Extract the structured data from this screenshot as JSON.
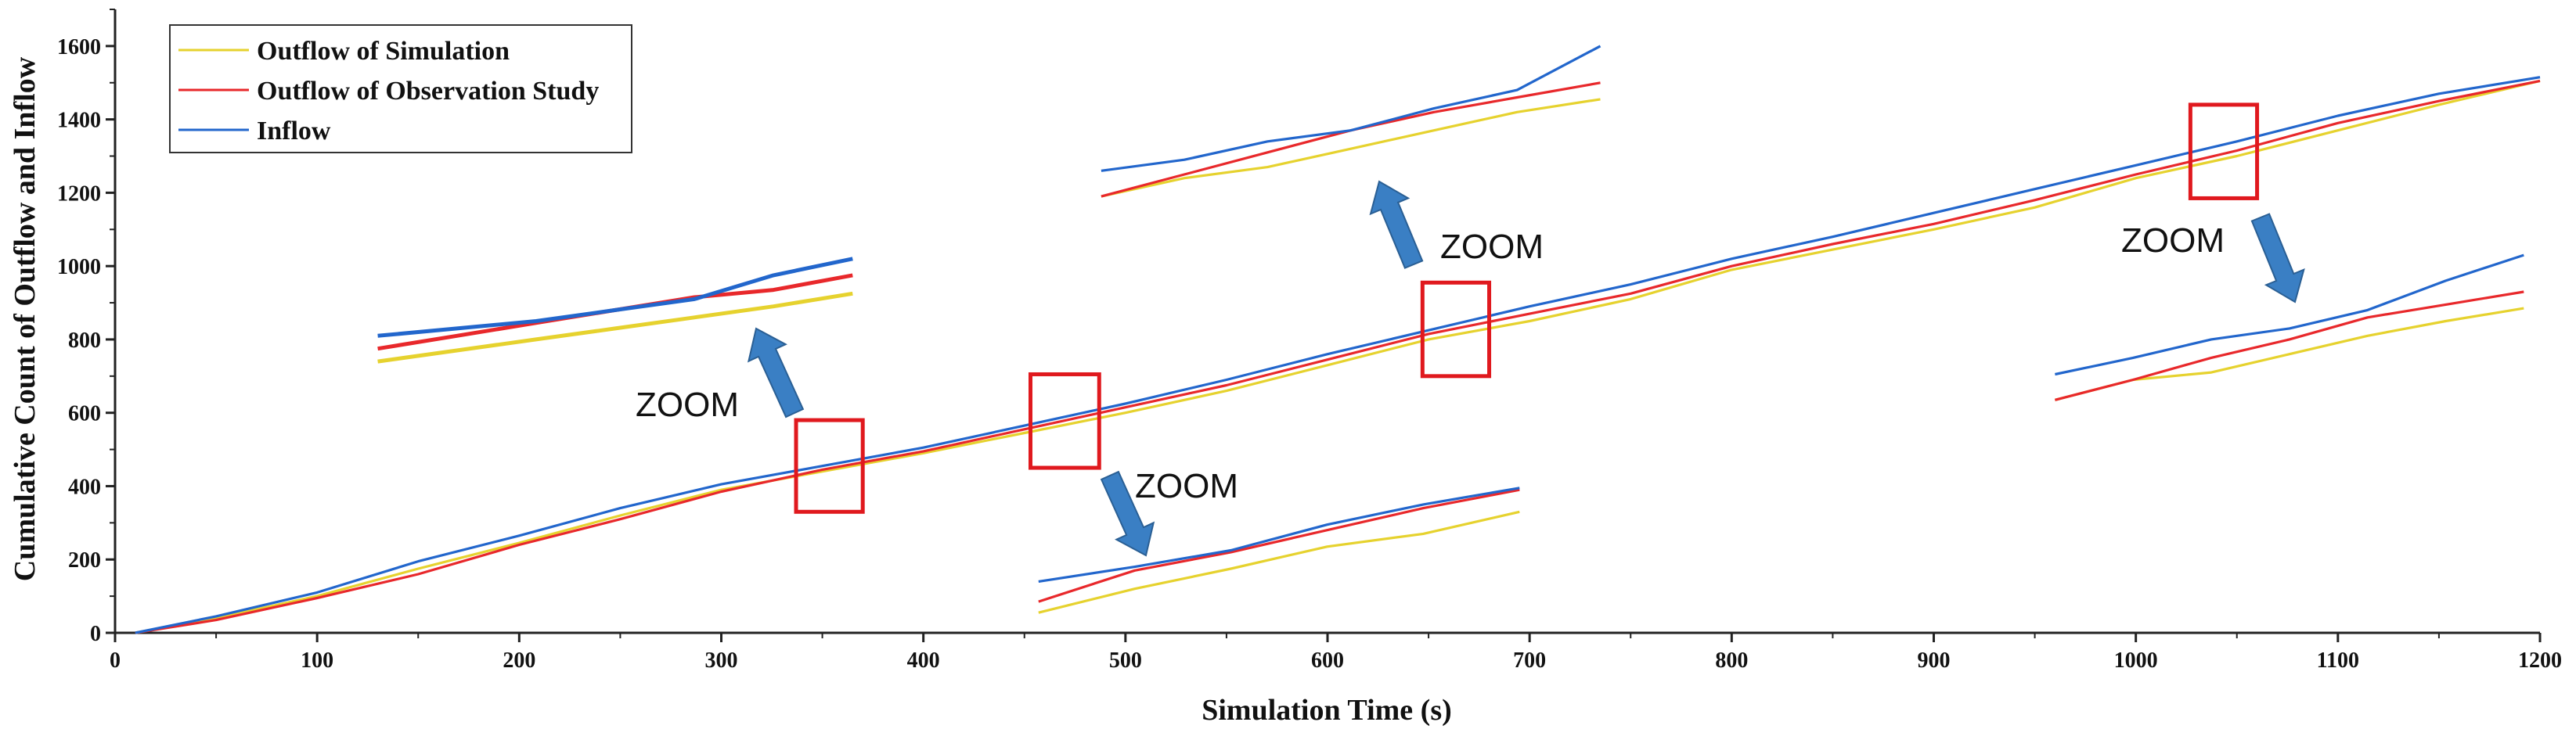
{
  "chart_data": {
    "type": "line",
    "title": "",
    "xlabel": "Simulation Time (s)",
    "ylabel": "Cumulative Count of Outflow and Inflow",
    "xlim": [
      0,
      1200
    ],
    "ylim": [
      0,
      1700
    ],
    "xticks": [
      0,
      100,
      200,
      300,
      400,
      500,
      600,
      700,
      800,
      900,
      1000,
      1100,
      1200
    ],
    "yticks": [
      0,
      200,
      400,
      600,
      800,
      1000,
      1200,
      1400,
      1600
    ],
    "grid": false,
    "legend_position": "top-left",
    "series": [
      {
        "name": "Outflow of Simulation",
        "color": "#e6d22e",
        "x": [
          10,
          50,
          100,
          150,
          200,
          250,
          300,
          350,
          400,
          450,
          500,
          550,
          600,
          650,
          700,
          750,
          800,
          850,
          900,
          950,
          1000,
          1050,
          1100,
          1150,
          1200
        ],
        "y": [
          0,
          40,
          100,
          175,
          245,
          320,
          390,
          440,
          490,
          545,
          600,
          660,
          730,
          800,
          850,
          910,
          990,
          1045,
          1100,
          1160,
          1240,
          1300,
          1370,
          1440,
          1505
        ]
      },
      {
        "name": "Outflow of Observation Study",
        "color": "#e8282b",
        "x": [
          10,
          50,
          100,
          150,
          200,
          250,
          300,
          350,
          400,
          450,
          500,
          550,
          600,
          650,
          700,
          750,
          800,
          850,
          900,
          950,
          1000,
          1050,
          1100,
          1150,
          1200
        ],
        "y": [
          0,
          35,
          95,
          160,
          240,
          310,
          385,
          445,
          495,
          555,
          615,
          675,
          745,
          815,
          870,
          925,
          1000,
          1060,
          1115,
          1180,
          1250,
          1315,
          1390,
          1450,
          1505
        ]
      },
      {
        "name": "Inflow",
        "color": "#2266cc",
        "x": [
          10,
          50,
          100,
          150,
          200,
          250,
          300,
          350,
          400,
          450,
          500,
          550,
          600,
          650,
          700,
          750,
          800,
          850,
          900,
          950,
          1000,
          1050,
          1100,
          1150,
          1200
        ],
        "y": [
          0,
          45,
          110,
          195,
          265,
          340,
          405,
          455,
          505,
          565,
          625,
          690,
          760,
          825,
          890,
          950,
          1020,
          1080,
          1145,
          1210,
          1275,
          1340,
          1410,
          1470,
          1515
        ]
      }
    ],
    "zoom_regions": [
      {
        "x_range": [
          337,
          370
        ],
        "y_range": [
          330,
          580
        ]
      },
      {
        "x_range": [
          453,
          487
        ],
        "y_range": [
          450,
          705
        ]
      },
      {
        "x_range": [
          647,
          680
        ],
        "y_range": [
          700,
          955
        ]
      },
      {
        "x_range": [
          1027,
          1060
        ],
        "y_range": [
          1185,
          1440
        ]
      }
    ],
    "annotations": [
      "ZOOM",
      "ZOOM",
      "ZOOM",
      "ZOOM"
    ],
    "insets": [
      {
        "simulation": [
          740,
          770,
          800,
          830,
          860,
          890,
          925
        ],
        "observation": [
          775,
          810,
          845,
          880,
          915,
          935,
          975
        ],
        "inflow": [
          810,
          830,
          850,
          880,
          910,
          975,
          1020
        ]
      },
      {
        "simulation": [
          55,
          120,
          175,
          235,
          270,
          330
        ],
        "observation": [
          85,
          170,
          220,
          280,
          340,
          390
        ],
        "inflow": [
          140,
          180,
          225,
          295,
          350,
          395
        ]
      },
      {
        "simulation": [
          1190,
          1240,
          1270,
          1320,
          1370,
          1420,
          1455
        ],
        "observation": [
          1190,
          1250,
          1310,
          1370,
          1420,
          1460,
          1500
        ],
        "inflow": [
          1260,
          1290,
          1340,
          1370,
          1430,
          1480,
          1600
        ]
      },
      {
        "simulation": [
          635,
          690,
          710,
          760,
          810,
          850,
          885
        ],
        "observation": [
          635,
          690,
          750,
          800,
          860,
          895,
          930
        ],
        "inflow": [
          705,
          750,
          800,
          830,
          880,
          960,
          1030
        ]
      }
    ]
  }
}
